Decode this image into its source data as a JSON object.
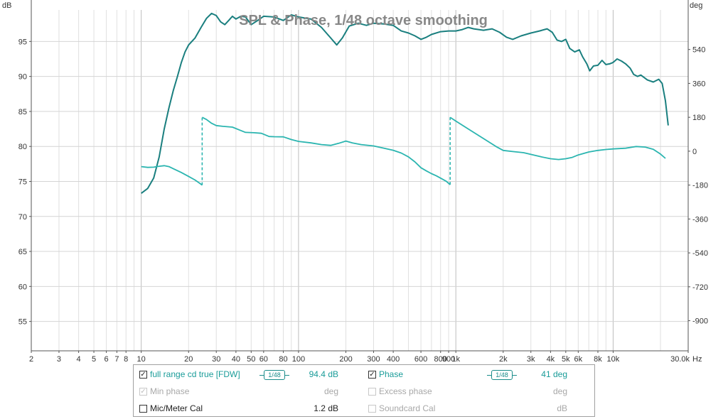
{
  "chart_data": {
    "type": "line",
    "title": "SPL & Phase, 1/48 octave smoothing",
    "x_unit": "Hz",
    "x_scale": "log",
    "xlim": [
      2,
      30000
    ],
    "x_ticks": [
      {
        "v": 2,
        "l": "2"
      },
      {
        "v": 3,
        "l": "3"
      },
      {
        "v": 4,
        "l": "4"
      },
      {
        "v": 5,
        "l": "5"
      },
      {
        "v": 6,
        "l": "6"
      },
      {
        "v": 7,
        "l": "7"
      },
      {
        "v": 8,
        "l": "8"
      },
      {
        "v": 10,
        "l": "10"
      },
      {
        "v": 20,
        "l": "20"
      },
      {
        "v": 30,
        "l": "30"
      },
      {
        "v": 40,
        "l": "40"
      },
      {
        "v": 50,
        "l": "50"
      },
      {
        "v": 60,
        "l": "60"
      },
      {
        "v": 80,
        "l": "80"
      },
      {
        "v": 100,
        "l": "100"
      },
      {
        "v": 200,
        "l": "200"
      },
      {
        "v": 300,
        "l": "300"
      },
      {
        "v": 400,
        "l": "400"
      },
      {
        "v": 600,
        "l": "600"
      },
      {
        "v": 800,
        "l": "800"
      },
      {
        "v": 900,
        "l": "900"
      },
      {
        "v": 1000,
        "l": "1k"
      },
      {
        "v": 2000,
        "l": "2k"
      },
      {
        "v": 3000,
        "l": "3k"
      },
      {
        "v": 4000,
        "l": "4k"
      },
      {
        "v": 5000,
        "l": "5k"
      },
      {
        "v": 6000,
        "l": "6k"
      },
      {
        "v": 8000,
        "l": "8k"
      },
      {
        "v": 10000,
        "l": "10k"
      },
      {
        "v": 30000,
        "l": "30.0k"
      }
    ],
    "x_end_unit": "Hz",
    "left_axis": {
      "unit": "dB",
      "ylim": [
        50.8,
        99.5
      ],
      "ticks": [
        55,
        60,
        65,
        70,
        75,
        80,
        85,
        90,
        95
      ]
    },
    "right_axis": {
      "unit": "deg",
      "ylim": [
        -1060,
        750
      ],
      "ticks": [
        {
          "v": 540,
          "l": "540"
        },
        {
          "v": 360,
          "l": "360"
        },
        {
          "v": 180,
          "l": "180"
        },
        {
          "v": 0,
          "l": "0"
        },
        {
          "v": -180,
          "l": "-180"
        },
        {
          "v": -360,
          "l": "-360"
        },
        {
          "v": -540,
          "l": "-540"
        },
        {
          "v": -720,
          "l": "-720"
        },
        {
          "v": -900,
          "l": "-900"
        }
      ]
    },
    "grid": true,
    "series": [
      {
        "name": "full range cd true [FDW]",
        "axis": "left",
        "color": "#1a7f7f",
        "points": [
          [
            10,
            73.3
          ],
          [
            11,
            74.0
          ],
          [
            12,
            75.5
          ],
          [
            13,
            78.5
          ],
          [
            14,
            82.5
          ],
          [
            15,
            85.5
          ],
          [
            16,
            88.0
          ],
          [
            17,
            90.0
          ],
          [
            18,
            92.0
          ],
          [
            19,
            93.5
          ],
          [
            20,
            94.5
          ],
          [
            22,
            95.5
          ],
          [
            24,
            97.0
          ],
          [
            26,
            98.3
          ],
          [
            28,
            99.0
          ],
          [
            30,
            98.7
          ],
          [
            32,
            97.8
          ],
          [
            34,
            97.4
          ],
          [
            36,
            98.0
          ],
          [
            38,
            98.6
          ],
          [
            40,
            98.2
          ],
          [
            43,
            98.6
          ],
          [
            46,
            98.5
          ],
          [
            50,
            97.4
          ],
          [
            55,
            98.0
          ],
          [
            60,
            98.6
          ],
          [
            70,
            98.5
          ],
          [
            80,
            98.0
          ],
          [
            90,
            98.8
          ],
          [
            100,
            98.5
          ],
          [
            120,
            98.2
          ],
          [
            140,
            97.0
          ],
          [
            160,
            95.5
          ],
          [
            175,
            94.5
          ],
          [
            190,
            95.5
          ],
          [
            210,
            97.2
          ],
          [
            240,
            97.6
          ],
          [
            270,
            97.3
          ],
          [
            300,
            97.6
          ],
          [
            350,
            97.5
          ],
          [
            400,
            97.3
          ],
          [
            450,
            96.5
          ],
          [
            500,
            96.2
          ],
          [
            550,
            95.8
          ],
          [
            600,
            95.3
          ],
          [
            650,
            95.6
          ],
          [
            700,
            96.0
          ],
          [
            800,
            96.4
          ],
          [
            900,
            96.5
          ],
          [
            1000,
            96.5
          ],
          [
            1100,
            96.7
          ],
          [
            1200,
            97.0
          ],
          [
            1300,
            96.8
          ],
          [
            1500,
            96.6
          ],
          [
            1700,
            96.8
          ],
          [
            1900,
            96.3
          ],
          [
            2100,
            95.6
          ],
          [
            2300,
            95.3
          ],
          [
            2600,
            95.8
          ],
          [
            3000,
            96.2
          ],
          [
            3400,
            96.5
          ],
          [
            3800,
            96.8
          ],
          [
            4100,
            96.3
          ],
          [
            4400,
            95.2
          ],
          [
            4700,
            95.0
          ],
          [
            5000,
            95.3
          ],
          [
            5300,
            94.0
          ],
          [
            5700,
            93.5
          ],
          [
            6100,
            93.8
          ],
          [
            6400,
            92.8
          ],
          [
            6800,
            91.8
          ],
          [
            7100,
            90.8
          ],
          [
            7500,
            91.5
          ],
          [
            8000,
            91.6
          ],
          [
            8500,
            92.3
          ],
          [
            9000,
            91.7
          ],
          [
            9500,
            91.8
          ],
          [
            10000,
            92.0
          ],
          [
            10600,
            92.5
          ],
          [
            11300,
            92.2
          ],
          [
            12000,
            91.8
          ],
          [
            12800,
            91.2
          ],
          [
            13500,
            90.3
          ],
          [
            14300,
            90.0
          ],
          [
            15000,
            90.2
          ],
          [
            16500,
            89.5
          ],
          [
            18000,
            89.2
          ],
          [
            19500,
            89.6
          ],
          [
            20500,
            89.0
          ],
          [
            21500,
            86.5
          ],
          [
            22400,
            83.0
          ]
        ]
      },
      {
        "name": "Phase",
        "axis": "right",
        "color": "#2bb5b0",
        "points": [
          [
            10,
            -82
          ],
          [
            11,
            -86
          ],
          [
            12,
            -85
          ],
          [
            13,
            -80
          ],
          [
            14,
            -77
          ],
          [
            15,
            -82
          ],
          [
            16,
            -93
          ],
          [
            18,
            -113
          ],
          [
            20,
            -134
          ],
          [
            22,
            -153
          ],
          [
            23.5,
            -170
          ],
          [
            24.4,
            -180
          ],
          [
            24.4,
            180
          ],
          [
            26,
            168
          ],
          [
            28,
            148
          ],
          [
            30,
            136
          ],
          [
            33,
            132
          ],
          [
            38,
            128
          ],
          [
            42,
            113
          ],
          [
            46,
            100
          ],
          [
            52,
            98
          ],
          [
            58,
            95
          ],
          [
            65,
            78
          ],
          [
            70,
            77
          ],
          [
            80,
            76
          ],
          [
            90,
            62
          ],
          [
            100,
            52
          ],
          [
            120,
            44
          ],
          [
            140,
            35
          ],
          [
            160,
            31
          ],
          [
            180,
            42
          ],
          [
            200,
            54
          ],
          [
            220,
            44
          ],
          [
            250,
            35
          ],
          [
            300,
            28
          ],
          [
            350,
            16
          ],
          [
            400,
            5
          ],
          [
            450,
            -10
          ],
          [
            500,
            -30
          ],
          [
            550,
            -57
          ],
          [
            600,
            -88
          ],
          [
            650,
            -105
          ],
          [
            700,
            -119
          ],
          [
            750,
            -130
          ],
          [
            800,
            -143
          ],
          [
            870,
            -160
          ],
          [
            920,
            -178
          ],
          [
            920,
            180
          ],
          [
            1000,
            160
          ],
          [
            1200,
            118
          ],
          [
            1500,
            67
          ],
          [
            1800,
            25
          ],
          [
            2000,
            4
          ],
          [
            2300,
            -2
          ],
          [
            2700,
            -8
          ],
          [
            3000,
            -17
          ],
          [
            3500,
            -30
          ],
          [
            4000,
            -40
          ],
          [
            4500,
            -44
          ],
          [
            5000,
            -40
          ],
          [
            5500,
            -33
          ],
          [
            6000,
            -20
          ],
          [
            7000,
            -4
          ],
          [
            8000,
            4
          ],
          [
            9000,
            9
          ],
          [
            10000,
            12
          ],
          [
            12000,
            16
          ],
          [
            14000,
            25
          ],
          [
            16000,
            22
          ],
          [
            18000,
            10
          ],
          [
            20000,
            -15
          ],
          [
            21500,
            -38
          ]
        ],
        "wrap_dashed": [
          {
            "from": [
              24.4,
              -180
            ],
            "to": [
              24.4,
              180
            ]
          },
          {
            "from": [
              920,
              -178
            ],
            "to": [
              920,
              180
            ]
          }
        ]
      }
    ]
  },
  "legend": {
    "rows": [
      {
        "left": {
          "label": "full range cd true [FDW]",
          "checked": true,
          "enabled": true,
          "smoothing": "1/48",
          "value": "94.4 dB"
        },
        "right": {
          "label": "Phase",
          "checked": true,
          "enabled": true,
          "smoothing": "1/48",
          "value": "41 deg"
        }
      },
      {
        "left": {
          "label": "Min phase",
          "checked": true,
          "enabled": false,
          "value": "deg"
        },
        "right": {
          "label": "Excess phase",
          "checked": false,
          "enabled": false,
          "value": "deg"
        }
      },
      {
        "left": {
          "label": "Mic/Meter Cal",
          "checked": false,
          "enabled": true,
          "value": "1.2 dB"
        },
        "right": {
          "label": "Soundcard Cal",
          "checked": false,
          "enabled": false,
          "value": "dB"
        }
      }
    ]
  }
}
